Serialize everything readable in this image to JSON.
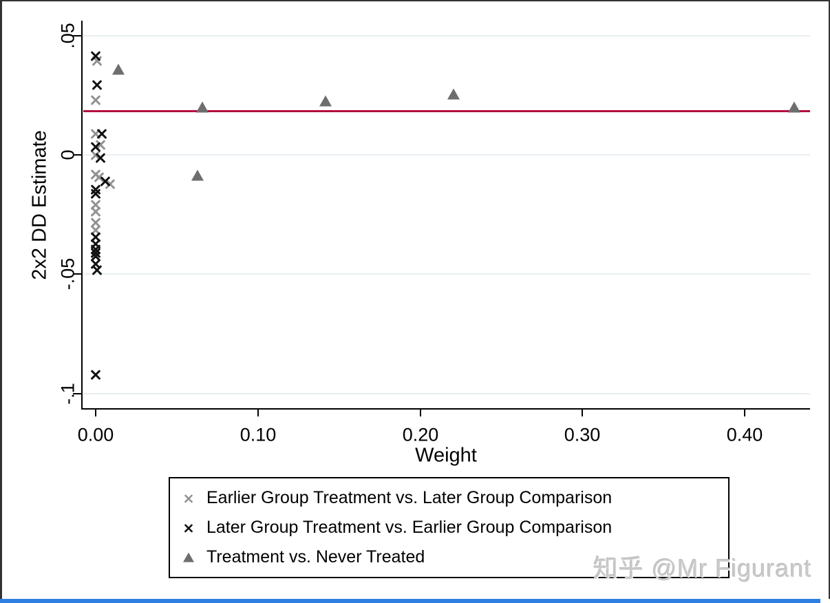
{
  "watermark": "知乎 @Mr Figurant",
  "chart_data": {
    "type": "scatter",
    "title": "",
    "xlabel": "Weight",
    "ylabel": "2x2 DD Estimate",
    "xlim": [
      -0.008,
      0.44
    ],
    "ylim": [
      -0.106,
      0.056
    ],
    "grid": true,
    "legend_position": "bottom",
    "xticks": [
      {
        "value": 0.0,
        "label": "0.00"
      },
      {
        "value": 0.1,
        "label": "0.10"
      },
      {
        "value": 0.2,
        "label": "0.20"
      },
      {
        "value": 0.3,
        "label": "0.30"
      },
      {
        "value": 0.4,
        "label": "0.40"
      }
    ],
    "yticks": [
      {
        "value": 0.05,
        "label": ".05"
      },
      {
        "value": 0.0,
        "label": "0"
      },
      {
        "value": -0.05,
        "label": "-.05"
      },
      {
        "value": -0.1,
        "label": "-.1"
      }
    ],
    "reference_line": {
      "value": 0.0182,
      "color": "#b40d3d"
    },
    "series": [
      {
        "name": "Earlier Group Treatment vs. Later Group Comparison",
        "marker": "x",
        "color": "#929292",
        "points": [
          [
            0.001,
            0.0395
          ],
          [
            0.0,
            0.0228
          ],
          [
            0.0,
            0.0087
          ],
          [
            0.003,
            0.0043
          ],
          [
            0.0,
            0.0
          ],
          [
            0.0,
            -0.0081
          ],
          [
            0.002,
            -0.0095
          ],
          [
            0.009,
            -0.0124
          ],
          [
            0.0,
            -0.0208
          ],
          [
            0.0,
            -0.0237
          ],
          [
            0.0,
            -0.0283
          ],
          [
            0.0,
            -0.0317
          ]
        ]
      },
      {
        "name": "Later Group Treatment vs. Earlier Group Comparison",
        "marker": "x",
        "color": "#111111",
        "points": [
          [
            0.0,
            0.0415
          ],
          [
            0.001,
            0.0294
          ],
          [
            0.004,
            0.0089
          ],
          [
            0.0,
            0.0032
          ],
          [
            0.003,
            -0.0012
          ],
          [
            0.006,
            -0.011
          ],
          [
            0.0,
            -0.0147
          ],
          [
            0.0,
            -0.0164
          ],
          [
            0.0,
            -0.0346
          ],
          [
            0.0,
            -0.0375
          ],
          [
            0.0,
            -0.0396
          ],
          [
            0.0,
            -0.041
          ],
          [
            0.0,
            -0.0427
          ],
          [
            0.0,
            -0.0456
          ],
          [
            0.001,
            -0.0482
          ],
          [
            0.0,
            -0.0923
          ]
        ]
      },
      {
        "name": "Treatment vs. Never Treated",
        "marker": "triangle",
        "color": "#6e6e6e",
        "points": [
          [
            0.014,
            0.0358
          ],
          [
            0.066,
            0.0199
          ],
          [
            0.063,
            -0.0087
          ],
          [
            0.142,
            0.0225
          ],
          [
            0.221,
            0.0254
          ],
          [
            0.431,
            0.0199
          ]
        ]
      }
    ]
  }
}
